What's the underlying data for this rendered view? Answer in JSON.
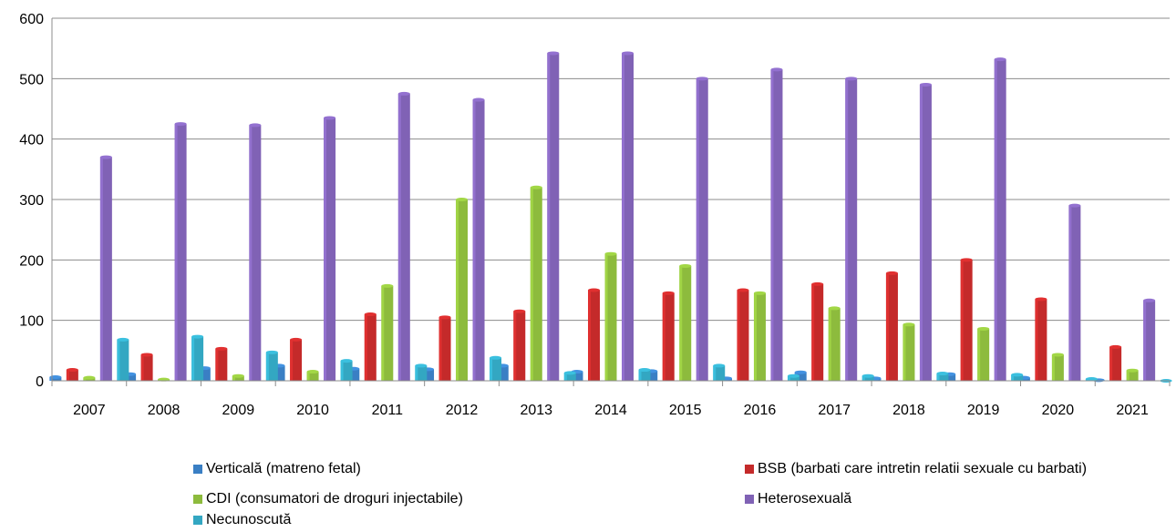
{
  "chart_data": {
    "type": "bar",
    "title": "",
    "xlabel": "",
    "ylabel": "",
    "ylim": [
      0,
      600
    ],
    "yticks": [
      "0",
      "100",
      "200",
      "300",
      "400",
      "500",
      "600"
    ],
    "categories": [
      "2007",
      "2008",
      "2009",
      "2010",
      "2011",
      "2012",
      "2013",
      "2014",
      "2015",
      "2016",
      "2017",
      "2018",
      "2019",
      "2020",
      "2021"
    ],
    "series": [
      {
        "name": "Verticală (matreno fetal)",
        "color": "#3a7fc4",
        "values": [
          6,
          11,
          21,
          25,
          20,
          19,
          25,
          15,
          16,
          4,
          14,
          4,
          11,
          5,
          1
        ]
      },
      {
        "name": "BSB (barbati care intretin relatii sexuale cu barbati)",
        "color": "#c42a2a",
        "values": [
          18,
          43,
          53,
          68,
          110,
          105,
          115,
          150,
          145,
          150,
          160,
          178,
          200,
          135,
          56
        ]
      },
      {
        "name": "CDI (consumatori de droguri injectabile)",
        "color": "#8dbb3d",
        "values": [
          5,
          2,
          8,
          15,
          157,
          300,
          320,
          210,
          190,
          145,
          120,
          93,
          86,
          43,
          17
        ]
      },
      {
        "name": "Heterosexuală",
        "color": "#8062b5",
        "values": [
          370,
          425,
          423,
          435,
          475,
          465,
          542,
          542,
          500,
          515,
          500,
          490,
          532,
          290,
          133
        ]
      },
      {
        "name": "Necunoscută",
        "color": "#33a7c2",
        "values": [
          68,
          73,
          47,
          33,
          25,
          38,
          13,
          18,
          25,
          8,
          8,
          12,
          10,
          3,
          0
        ]
      }
    ],
    "grid": true,
    "legend_position": "bottom"
  }
}
